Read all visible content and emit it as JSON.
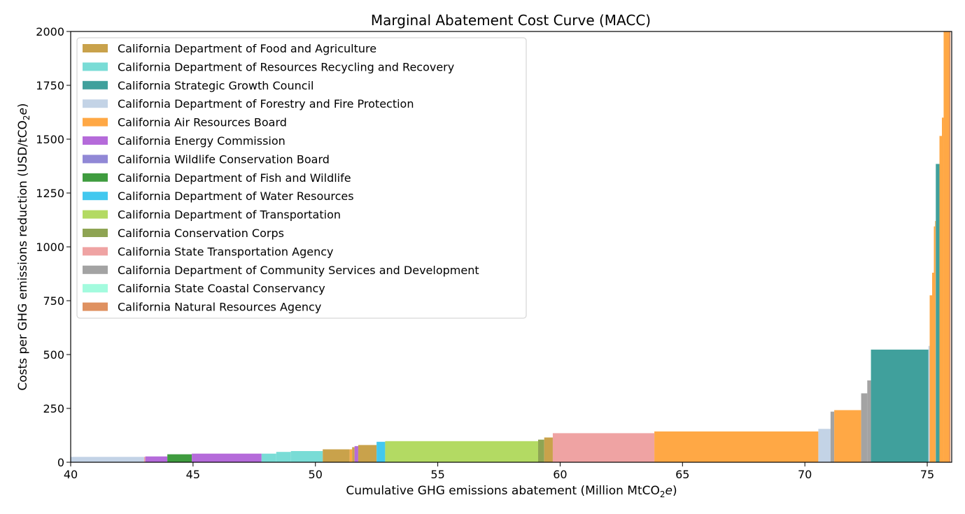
{
  "chart_data": {
    "type": "bar",
    "title": "Marginal Abatement Cost Curve (MACC)",
    "xlabel_main": "Cumulative GHG emissions abatement (Million MtCO",
    "xlabel_sub": "2",
    "xlabel_e": "e",
    "xlabel_close": ")",
    "ylabel_main": "Costs per GHG emissions reduction (USD/tCO",
    "ylabel_sub": "2",
    "ylabel_e": "e",
    "ylabel_close": ")",
    "xlim": [
      40,
      76
    ],
    "ylim": [
      0,
      2000
    ],
    "xticks": [
      40,
      45,
      50,
      55,
      60,
      65,
      70,
      75
    ],
    "yticks": [
      0,
      250,
      500,
      750,
      1000,
      1250,
      1500,
      1750,
      2000
    ],
    "grid": false,
    "legend_position": "upper-left",
    "agencies": [
      {
        "name": "California Department of Food and Agriculture",
        "color": "#C9A24B"
      },
      {
        "name": "California Department of Resources Recycling and Recovery",
        "color": "#79DCD6"
      },
      {
        "name": "California Strategic Growth Council",
        "color": "#40A09C"
      },
      {
        "name": "California Department of Forestry and Fire Protection",
        "color": "#C3D3E6"
      },
      {
        "name": "California Air Resources Board",
        "color": "#FFA845"
      },
      {
        "name": "California Energy Commission",
        "color": "#B56BDA"
      },
      {
        "name": "California Wildlife Conservation Board",
        "color": "#9188D6"
      },
      {
        "name": "California Department of Fish and Wildlife",
        "color": "#3F9C3F"
      },
      {
        "name": "California Department of Water Resources",
        "color": "#42C8EF"
      },
      {
        "name": "California Department of Transportation",
        "color": "#B3DA63"
      },
      {
        "name": "California Conservation Corps",
        "color": "#8EA453"
      },
      {
        "name": "California State Transportation Agency",
        "color": "#EFA3A3"
      },
      {
        "name": "California Department of Community Services and Development",
        "color": "#A3A3A3"
      },
      {
        "name": "California State Coastal Conservancy",
        "color": "#A3FBDE"
      },
      {
        "name": "California Natural Resources Agency",
        "color": "#DF9160"
      }
    ],
    "bars": [
      {
        "x0": 40.0,
        "x1": 43.0,
        "y": 25,
        "agency": 3
      },
      {
        "x0": 43.0,
        "x1": 43.05,
        "y": 25,
        "agency": 11
      },
      {
        "x0": 43.05,
        "x1": 43.95,
        "y": 27,
        "agency": 5
      },
      {
        "x0": 43.95,
        "x1": 44.95,
        "y": 37,
        "agency": 7
      },
      {
        "x0": 44.95,
        "x1": 47.8,
        "y": 40,
        "agency": 5
      },
      {
        "x0": 47.8,
        "x1": 48.4,
        "y": 40,
        "agency": 1
      },
      {
        "x0": 48.4,
        "x1": 49.0,
        "y": 48,
        "agency": 1
      },
      {
        "x0": 49.0,
        "x1": 50.3,
        "y": 52,
        "agency": 1
      },
      {
        "x0": 50.3,
        "x1": 51.4,
        "y": 60,
        "agency": 0
      },
      {
        "x0": 51.4,
        "x1": 51.5,
        "y": 60,
        "agency": 4
      },
      {
        "x0": 51.5,
        "x1": 51.6,
        "y": 70,
        "agency": 0
      },
      {
        "x0": 51.6,
        "x1": 51.75,
        "y": 75,
        "agency": 5
      },
      {
        "x0": 51.75,
        "x1": 52.5,
        "y": 80,
        "agency": 0
      },
      {
        "x0": 52.5,
        "x1": 52.85,
        "y": 95,
        "agency": 8
      },
      {
        "x0": 52.85,
        "x1": 59.1,
        "y": 98,
        "agency": 9
      },
      {
        "x0": 59.1,
        "x1": 59.35,
        "y": 105,
        "agency": 10
      },
      {
        "x0": 59.35,
        "x1": 59.7,
        "y": 115,
        "agency": 0
      },
      {
        "x0": 59.7,
        "x1": 63.85,
        "y": 135,
        "agency": 11
      },
      {
        "x0": 63.85,
        "x1": 70.55,
        "y": 143,
        "agency": 4
      },
      {
        "x0": 70.55,
        "x1": 71.05,
        "y": 155,
        "agency": 3
      },
      {
        "x0": 71.05,
        "x1": 71.2,
        "y": 235,
        "agency": 12
      },
      {
        "x0": 71.2,
        "x1": 72.3,
        "y": 242,
        "agency": 4
      },
      {
        "x0": 72.3,
        "x1": 72.55,
        "y": 320,
        "agency": 12
      },
      {
        "x0": 72.55,
        "x1": 72.7,
        "y": 380,
        "agency": 12
      },
      {
        "x0": 72.7,
        "x1": 75.05,
        "y": 523,
        "agency": 2
      },
      {
        "x0": 75.05,
        "x1": 75.1,
        "y": 540,
        "agency": 3
      },
      {
        "x0": 75.1,
        "x1": 75.2,
        "y": 775,
        "agency": 4
      },
      {
        "x0": 75.2,
        "x1": 75.27,
        "y": 880,
        "agency": 4
      },
      {
        "x0": 75.27,
        "x1": 75.32,
        "y": 1095,
        "agency": 4
      },
      {
        "x0": 75.32,
        "x1": 75.35,
        "y": 1120,
        "agency": 4
      },
      {
        "x0": 75.35,
        "x1": 75.5,
        "y": 1385,
        "agency": 2
      },
      {
        "x0": 75.5,
        "x1": 75.6,
        "y": 1515,
        "agency": 4
      },
      {
        "x0": 75.6,
        "x1": 75.67,
        "y": 1600,
        "agency": 4
      },
      {
        "x0": 75.67,
        "x1": 75.8,
        "y": 2000,
        "agency": 4
      },
      {
        "x0": 75.8,
        "x1": 75.9,
        "y": 2000,
        "agency": 4
      },
      {
        "x0": 75.9,
        "x1": 75.95,
        "y": 2000,
        "agency": 14
      }
    ]
  }
}
